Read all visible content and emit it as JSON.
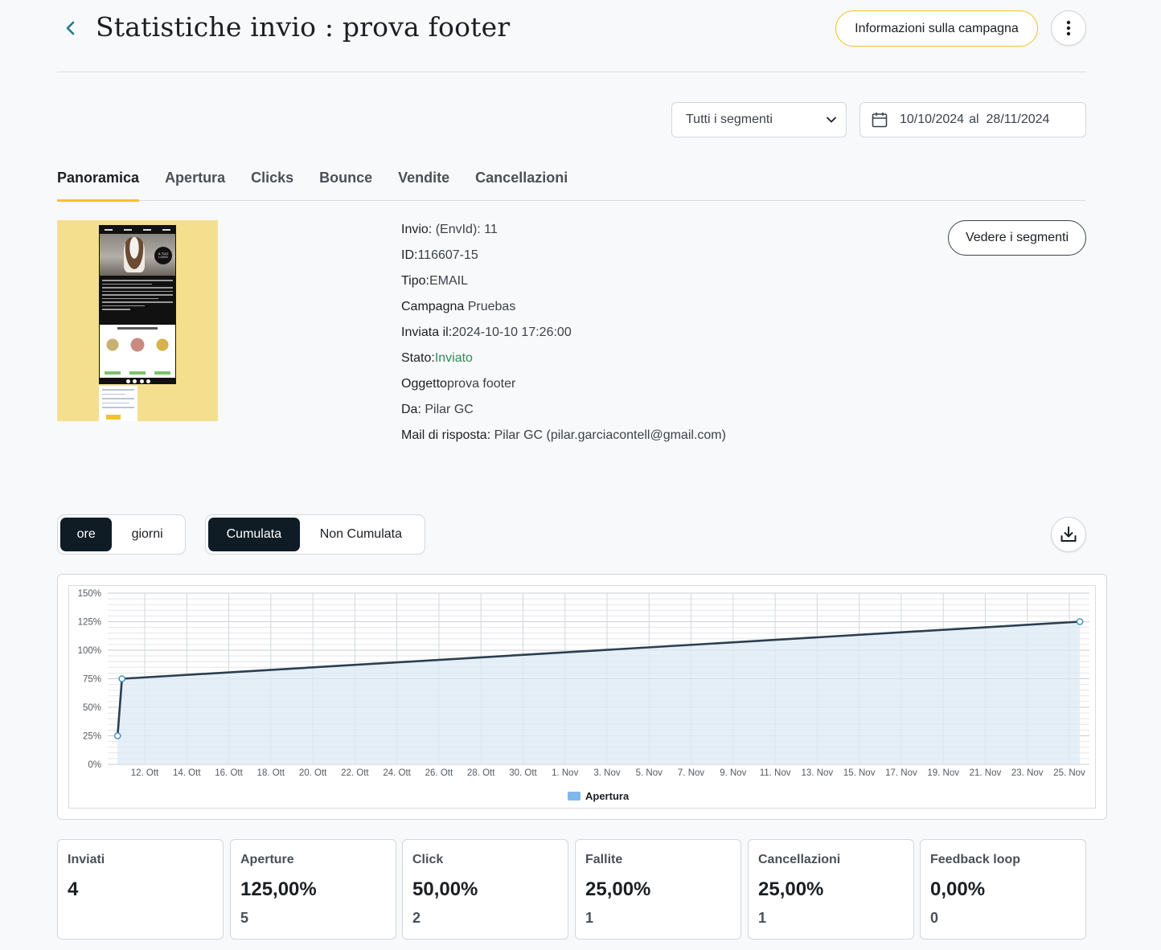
{
  "header": {
    "title": "Statistiche invio : prova footer",
    "info_button": "Informazioni sulla campagna"
  },
  "filters": {
    "segment_selected": "Tutti i segmenti",
    "date_from": "10/10/2024",
    "date_separator": "al",
    "date_to": "28/11/2024"
  },
  "tabs": [
    {
      "label": "Panoramica",
      "active": true
    },
    {
      "label": "Apertura"
    },
    {
      "label": "Clicks"
    },
    {
      "label": "Bounce"
    },
    {
      "label": "Vendite"
    },
    {
      "label": "Cancellazioni"
    }
  ],
  "preview": {
    "logo_text": "IL TUO LOGO"
  },
  "details": [
    {
      "key": "Invio:",
      "value": "(EnvId): 11"
    },
    {
      "key": "ID:",
      "value": "116607-15"
    },
    {
      "key": "Tipo:",
      "value": "EMAIL"
    },
    {
      "key": "Campagna",
      "value": "Pruebas"
    },
    {
      "key": "Inviata il:",
      "value": "2024-10-10 17:26:00"
    },
    {
      "key": "Stato:",
      "value": "Inviato"
    },
    {
      "key": "Oggetto",
      "value": "prova footer"
    },
    {
      "key": "Da:",
      "value": "Pilar GC"
    },
    {
      "key": "Mail di risposta:",
      "value": "Pilar GC (pilar.garciacontell@gmail.com)"
    }
  ],
  "segments_button": "Vedere i segmenti",
  "toggles": {
    "unit": [
      "ore",
      "giorni"
    ],
    "unit_selected": "ore",
    "mode": [
      "Cumulata",
      "Non Cumulata"
    ],
    "mode_selected": "Cumulata"
  },
  "colors": {
    "accent": "#f2c230",
    "dark": "#0f1c26",
    "status_green": "#2e8b57",
    "line": "#2d3e50",
    "area": "#dce9f6",
    "legend": "#7fb8ea"
  },
  "icons": [
    "chevron-left-icon",
    "more-vertical-icon",
    "chevron-down-icon",
    "calendar-icon",
    "download-icon"
  ],
  "chart_data": {
    "type": "area",
    "ylim": [
      0,
      150
    ],
    "y_ticks": [
      "0%",
      "25%",
      "50%",
      "75%",
      "100%",
      "125%",
      "150%"
    ],
    "x_ticks": [
      "12. Ott",
      "14. Ott",
      "16. Ott",
      "18. Ott",
      "20. Ott",
      "22. Ott",
      "24. Ott",
      "26. Ott",
      "28. Ott",
      "30. Ott",
      "1. Nov",
      "3. Nov",
      "5. Nov",
      "7. Nov",
      "9. Nov",
      "11. Nov",
      "13. Nov",
      "15. Nov",
      "17. Nov",
      "19. Nov",
      "21. Nov",
      "23. Nov",
      "25. Nov"
    ],
    "series": [
      {
        "name": "Apertura",
        "points": [
          {
            "x": "2024-10-10 17:00",
            "y": 25
          },
          {
            "x": "2024-10-10 22:00",
            "y": 75
          },
          {
            "x": "2024-11-25 12:00",
            "y": 125
          }
        ]
      }
    ],
    "grid": true,
    "legend": "bottom-center"
  },
  "stats": [
    {
      "label": "Inviati",
      "value": "4",
      "count": ""
    },
    {
      "label": "Aperture",
      "value": "125,00%",
      "count": "5"
    },
    {
      "label": "Click",
      "value": "50,00%",
      "count": "2"
    },
    {
      "label": "Fallite",
      "value": "25,00%",
      "count": "1"
    },
    {
      "label": "Cancellazioni",
      "value": "25,00%",
      "count": "1"
    },
    {
      "label": "Feedback loop",
      "value": "0,00%",
      "count": "0"
    }
  ]
}
